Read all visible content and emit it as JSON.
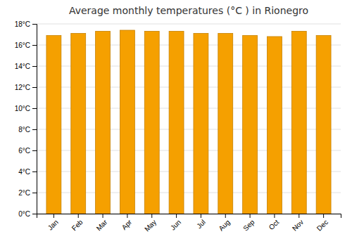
{
  "chart_data": {
    "type": "bar",
    "title": "Average monthly temperatures (°C ) in Rionegro",
    "categories": [
      "Jan",
      "Feb",
      "Mar",
      "Apr",
      "May",
      "Jun",
      "Jul",
      "Aug",
      "Sep",
      "Oct",
      "Nov",
      "Dec"
    ],
    "values": [
      16.9,
      17.1,
      17.3,
      17.4,
      17.3,
      17.3,
      17.1,
      17.1,
      16.9,
      16.8,
      17.3,
      16.9
    ],
    "color": "#F5A000",
    "ylim": [
      0,
      18
    ],
    "yticks": [
      {
        "value": 0,
        "label": "0°C"
      },
      {
        "value": 2,
        "label": "2°C"
      },
      {
        "value": 4,
        "label": "4°C"
      },
      {
        "value": 6,
        "label": "6°C"
      },
      {
        "value": 8,
        "label": "8°C"
      },
      {
        "value": 10,
        "label": "10°C"
      },
      {
        "value": 12,
        "label": "12°C"
      },
      {
        "value": 14,
        "label": "14°C"
      },
      {
        "value": 16,
        "label": "16°C"
      },
      {
        "value": 18,
        "label": "18°C"
      }
    ],
    "grid": true
  }
}
